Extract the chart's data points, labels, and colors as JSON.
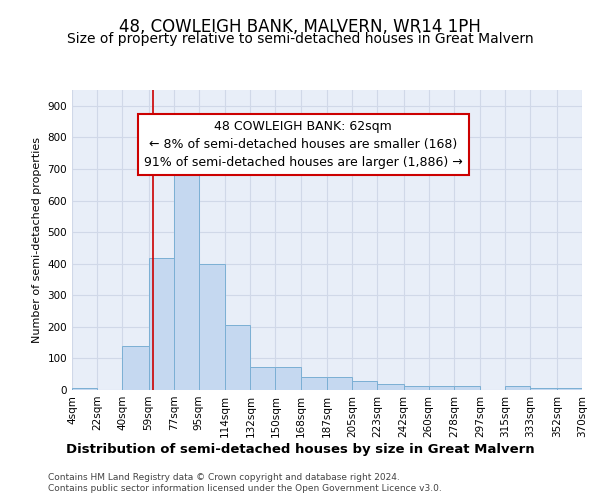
{
  "title": "48, COWLEIGH BANK, MALVERN, WR14 1PH",
  "subtitle": "Size of property relative to semi-detached houses in Great Malvern",
  "xlabel": "Distribution of semi-detached houses by size in Great Malvern",
  "ylabel": "Number of semi-detached properties",
  "footer_line1": "Contains HM Land Registry data © Crown copyright and database right 2024.",
  "footer_line2": "Contains public sector information licensed under the Open Government Licence v3.0.",
  "annotation_title": "48 COWLEIGH BANK: 62sqm",
  "annotation_line1": "← 8% of semi-detached houses are smaller (168)",
  "annotation_line2": "91% of semi-detached houses are larger (1,886) →",
  "bar_left_edges": [
    4,
    22,
    40,
    59,
    77,
    95,
    114,
    132,
    150,
    168,
    187,
    205,
    223,
    242,
    260,
    278,
    297,
    315,
    333,
    352
  ],
  "bar_widths": [
    18,
    18,
    19,
    18,
    18,
    19,
    18,
    18,
    18,
    19,
    18,
    18,
    19,
    18,
    18,
    19,
    18,
    18,
    19,
    18
  ],
  "bar_heights": [
    7,
    0,
    140,
    418,
    690,
    400,
    207,
    73,
    73,
    40,
    40,
    27,
    20,
    13,
    13,
    13,
    0,
    13,
    7,
    7
  ],
  "tick_labels": [
    "4sqm",
    "22sqm",
    "40sqm",
    "59sqm",
    "77sqm",
    "95sqm",
    "114sqm",
    "132sqm",
    "150sqm",
    "168sqm",
    "187sqm",
    "205sqm",
    "223sqm",
    "242sqm",
    "260sqm",
    "278sqm",
    "297sqm",
    "315sqm",
    "333sqm",
    "352sqm",
    "370sqm"
  ],
  "bar_color": "#c5d8f0",
  "bar_edge_color": "#7bafd4",
  "vline_color": "#cc0000",
  "vline_x": 62,
  "annotation_box_color": "#cc0000",
  "ylim": [
    0,
    950
  ],
  "yticks": [
    0,
    100,
    200,
    300,
    400,
    500,
    600,
    700,
    800,
    900
  ],
  "grid_color": "#d0d8e8",
  "bg_color": "#e8eef8",
  "title_fontsize": 12,
  "subtitle_fontsize": 10,
  "annotation_fontsize": 9,
  "ylabel_fontsize": 8,
  "xlabel_fontsize": 9.5,
  "tick_fontsize": 7.5,
  "footer_fontsize": 6.5
}
